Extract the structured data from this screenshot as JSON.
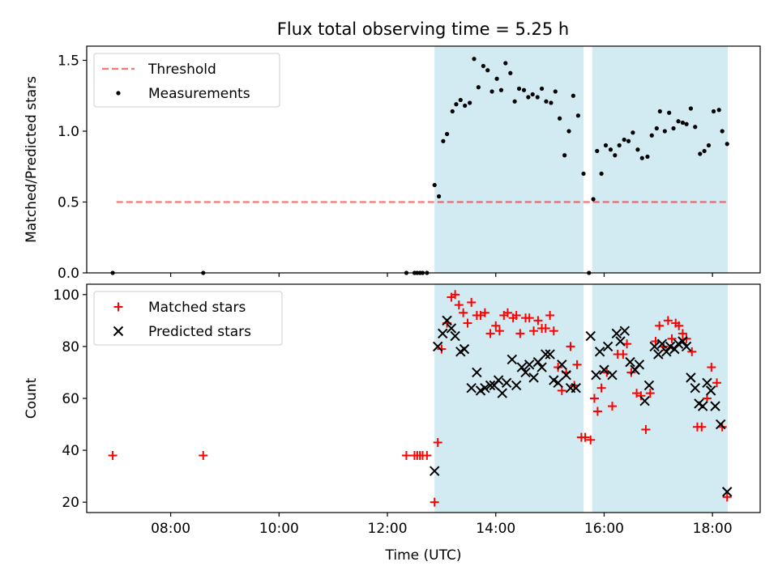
{
  "figure_title": "Flux total observing time = 5.25 h",
  "colors": {
    "shade": "#add8e6",
    "threshold": "#ff0000",
    "measurement": "#000000",
    "matched": "#ff0000",
    "predicted": "#000000"
  },
  "chart_data": [
    {
      "type": "scatter",
      "panel": "top",
      "ylabel": "Matched/Predicted stars",
      "xlabel": "",
      "xlim": [
        6.45,
        18.88
      ],
      "ylim": [
        0,
        1.6
      ],
      "yticks": [
        0.0,
        0.5,
        1.0,
        1.5
      ],
      "ytick_labels": [
        "0.0",
        "0.5",
        "1.0",
        "1.5"
      ],
      "shaded_intervals": [
        [
          12.87,
          15.62
        ],
        [
          15.78,
          18.28
        ]
      ],
      "legend": {
        "position": "upper-left",
        "entries": [
          "Threshold",
          "Measurements"
        ]
      },
      "threshold": {
        "name": "Threshold",
        "value": 0.5,
        "x_range": [
          7.0,
          18.28
        ],
        "style": "dashed"
      },
      "series": [
        {
          "name": "Measurements",
          "marker": "dot",
          "points": [
            [
              6.93,
              0.0
            ],
            [
              8.6,
              0.0
            ],
            [
              12.35,
              0.0
            ],
            [
              12.5,
              0.0
            ],
            [
              12.55,
              0.0
            ],
            [
              12.6,
              0.0
            ],
            [
              12.65,
              0.0
            ],
            [
              12.73,
              0.0
            ],
            [
              12.87,
              0.62
            ],
            [
              12.95,
              0.54
            ],
            [
              13.03,
              0.93
            ],
            [
              13.1,
              0.98
            ],
            [
              13.2,
              1.14
            ],
            [
              13.27,
              1.19
            ],
            [
              13.35,
              1.22
            ],
            [
              13.43,
              1.18
            ],
            [
              13.52,
              1.2
            ],
            [
              13.6,
              1.51
            ],
            [
              13.68,
              1.31
            ],
            [
              13.77,
              1.46
            ],
            [
              13.85,
              1.43
            ],
            [
              13.93,
              1.28
            ],
            [
              14.02,
              1.37
            ],
            [
              14.1,
              1.29
            ],
            [
              14.18,
              1.48
            ],
            [
              14.27,
              1.41
            ],
            [
              14.35,
              1.21
            ],
            [
              14.43,
              1.3
            ],
            [
              14.52,
              1.29
            ],
            [
              14.6,
              1.24
            ],
            [
              14.68,
              1.26
            ],
            [
              14.77,
              1.24
            ],
            [
              14.85,
              1.3
            ],
            [
              14.93,
              1.21
            ],
            [
              15.02,
              1.2
            ],
            [
              15.1,
              1.28
            ],
            [
              15.18,
              1.09
            ],
            [
              15.27,
              0.83
            ],
            [
              15.35,
              1.0
            ],
            [
              15.43,
              1.25
            ],
            [
              15.52,
              1.11
            ],
            [
              15.62,
              0.7
            ],
            [
              15.72,
              0.0
            ],
            [
              15.8,
              0.52
            ],
            [
              15.87,
              0.86
            ],
            [
              15.95,
              0.7
            ],
            [
              16.03,
              0.9
            ],
            [
              16.12,
              0.87
            ],
            [
              16.2,
              0.83
            ],
            [
              16.28,
              0.9
            ],
            [
              16.37,
              0.94
            ],
            [
              16.45,
              0.93
            ],
            [
              16.53,
              0.99
            ],
            [
              16.62,
              0.87
            ],
            [
              16.7,
              0.81
            ],
            [
              16.8,
              0.82
            ],
            [
              16.88,
              0.97
            ],
            [
              16.97,
              1.02
            ],
            [
              17.03,
              1.14
            ],
            [
              17.12,
              1.0
            ],
            [
              17.2,
              1.13
            ],
            [
              17.28,
              1.02
            ],
            [
              17.37,
              1.07
            ],
            [
              17.45,
              1.06
            ],
            [
              17.52,
              1.05
            ],
            [
              17.6,
              1.16
            ],
            [
              17.68,
              1.03
            ],
            [
              17.77,
              0.84
            ],
            [
              17.85,
              0.86
            ],
            [
              17.93,
              0.9
            ],
            [
              18.02,
              1.14
            ],
            [
              18.12,
              1.15
            ],
            [
              18.18,
              1.0
            ],
            [
              18.27,
              0.91
            ]
          ]
        }
      ]
    },
    {
      "type": "scatter",
      "panel": "bottom",
      "ylabel": "Count",
      "xlabel": "Time (UTC)",
      "xlim": [
        6.45,
        18.88
      ],
      "ylim": [
        16,
        104
      ],
      "yticks": [
        20,
        40,
        60,
        80,
        100
      ],
      "ytick_labels": [
        "20",
        "40",
        "60",
        "80",
        "100"
      ],
      "xticks": [
        8,
        10,
        12,
        14,
        16,
        18
      ],
      "xtick_labels": [
        "08:00",
        "10:00",
        "12:00",
        "14:00",
        "16:00",
        "18:00"
      ],
      "shaded_intervals": [
        [
          12.87,
          15.62
        ],
        [
          15.78,
          18.28
        ]
      ],
      "legend": {
        "position": "upper-left",
        "entries": [
          "Matched stars",
          "Predicted stars"
        ]
      },
      "series": [
        {
          "name": "Matched stars",
          "marker": "plus",
          "points": [
            [
              6.93,
              38
            ],
            [
              8.6,
              38
            ],
            [
              12.35,
              38
            ],
            [
              12.5,
              38
            ],
            [
              12.55,
              38
            ],
            [
              12.6,
              38
            ],
            [
              12.65,
              38
            ],
            [
              12.73,
              38
            ],
            [
              12.87,
              20
            ],
            [
              12.93,
              43
            ],
            [
              13.0,
              79
            ],
            [
              13.1,
              89
            ],
            [
              13.18,
              99
            ],
            [
              13.25,
              100
            ],
            [
              13.32,
              96
            ],
            [
              13.4,
              93
            ],
            [
              13.48,
              89
            ],
            [
              13.55,
              97
            ],
            [
              13.65,
              92
            ],
            [
              13.72,
              92
            ],
            [
              13.8,
              93
            ],
            [
              13.9,
              85
            ],
            [
              14.0,
              88
            ],
            [
              14.07,
              86
            ],
            [
              14.15,
              92
            ],
            [
              14.22,
              93
            ],
            [
              14.32,
              91
            ],
            [
              14.38,
              92
            ],
            [
              14.45,
              85
            ],
            [
              14.55,
              91
            ],
            [
              14.62,
              91
            ],
            [
              14.7,
              86
            ],
            [
              14.78,
              90
            ],
            [
              14.85,
              87
            ],
            [
              14.92,
              87
            ],
            [
              15.0,
              92
            ],
            [
              15.07,
              86
            ],
            [
              15.15,
              72
            ],
            [
              15.22,
              63
            ],
            [
              15.3,
              70
            ],
            [
              15.38,
              80
            ],
            [
              15.45,
              65
            ],
            [
              15.5,
              73
            ],
            [
              15.58,
              45
            ],
            [
              15.65,
              45
            ],
            [
              15.75,
              44
            ],
            [
              15.82,
              60
            ],
            [
              15.88,
              55
            ],
            [
              15.95,
              64
            ],
            [
              16.05,
              70
            ],
            [
              16.15,
              57
            ],
            [
              16.25,
              77
            ],
            [
              16.35,
              77
            ],
            [
              16.42,
              81
            ],
            [
              16.5,
              70
            ],
            [
              16.6,
              62
            ],
            [
              16.68,
              61
            ],
            [
              16.77,
              48
            ],
            [
              16.85,
              62
            ],
            [
              16.95,
              82
            ],
            [
              17.02,
              88
            ],
            [
              17.1,
              80
            ],
            [
              17.18,
              90
            ],
            [
              17.25,
              83
            ],
            [
              17.32,
              89
            ],
            [
              17.38,
              88
            ],
            [
              17.45,
              85
            ],
            [
              17.52,
              83
            ],
            [
              17.62,
              78
            ],
            [
              17.72,
              49
            ],
            [
              17.8,
              49
            ],
            [
              17.9,
              60
            ],
            [
              17.98,
              72
            ],
            [
              18.08,
              66
            ],
            [
              18.18,
              49
            ],
            [
              18.27,
              22
            ]
          ]
        },
        {
          "name": "Predicted stars",
          "marker": "x",
          "points": [
            [
              12.87,
              32
            ],
            [
              12.93,
              80
            ],
            [
              13.02,
              85
            ],
            [
              13.1,
              90
            ],
            [
              13.18,
              87
            ],
            [
              13.25,
              84
            ],
            [
              13.35,
              78
            ],
            [
              13.42,
              79
            ],
            [
              13.55,
              64
            ],
            [
              13.65,
              70
            ],
            [
              13.72,
              63
            ],
            [
              13.8,
              64
            ],
            [
              13.9,
              65
            ],
            [
              13.97,
              65
            ],
            [
              14.05,
              67
            ],
            [
              14.12,
              62
            ],
            [
              14.2,
              66
            ],
            [
              14.3,
              75
            ],
            [
              14.38,
              65
            ],
            [
              14.48,
              72
            ],
            [
              14.55,
              70
            ],
            [
              14.62,
              73
            ],
            [
              14.7,
              68
            ],
            [
              14.78,
              74
            ],
            [
              14.85,
              72
            ],
            [
              14.92,
              77
            ],
            [
              15.0,
              77
            ],
            [
              15.07,
              67
            ],
            [
              15.15,
              66
            ],
            [
              15.22,
              73
            ],
            [
              15.3,
              69
            ],
            [
              15.38,
              64
            ],
            [
              15.48,
              64
            ],
            [
              15.75,
              84
            ],
            [
              15.85,
              69
            ],
            [
              15.92,
              78
            ],
            [
              16.0,
              71
            ],
            [
              16.07,
              80
            ],
            [
              16.15,
              69
            ],
            [
              16.23,
              85
            ],
            [
              16.3,
              82
            ],
            [
              16.38,
              86
            ],
            [
              16.48,
              74
            ],
            [
              16.57,
              71
            ],
            [
              16.65,
              73
            ],
            [
              16.75,
              59
            ],
            [
              16.83,
              65
            ],
            [
              16.93,
              80
            ],
            [
              17.0,
              77
            ],
            [
              17.07,
              81
            ],
            [
              17.15,
              78
            ],
            [
              17.22,
              80
            ],
            [
              17.3,
              79
            ],
            [
              17.37,
              81
            ],
            [
              17.45,
              82
            ],
            [
              17.52,
              80
            ],
            [
              17.6,
              68
            ],
            [
              17.68,
              64
            ],
            [
              17.75,
              58
            ],
            [
              17.82,
              57
            ],
            [
              17.9,
              66
            ],
            [
              17.97,
              63
            ],
            [
              18.05,
              57
            ],
            [
              18.15,
              50
            ],
            [
              18.27,
              24
            ]
          ]
        }
      ]
    }
  ]
}
